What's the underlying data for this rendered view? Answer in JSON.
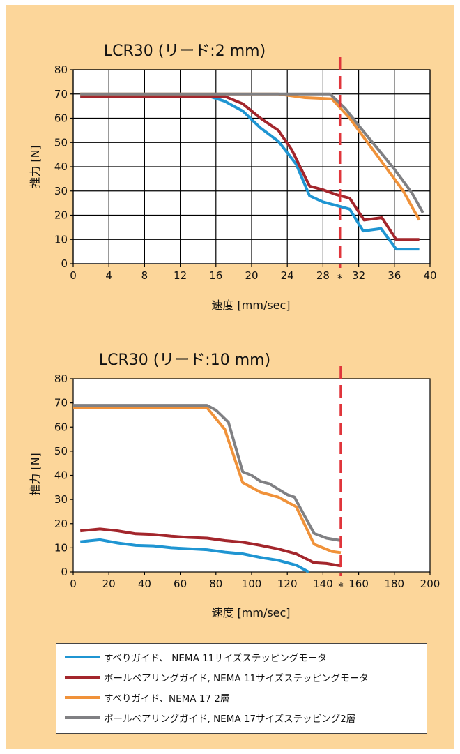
{
  "legend": [
    {
      "label": "すべりガイド、 NEMA 11サイズステッピングモータ",
      "color": "#1f95d2"
    },
    {
      "label": "ボールベアリングガイド, NEMA 11サイズステッピングモータ",
      "color": "#a3262c"
    },
    {
      "label": "すべりガイド、NEMA 17 2層",
      "color": "#f0923a"
    },
    {
      "label": "ボールベアリングガイド, NEMA 17サイズステッピング2層",
      "color": "#808083"
    }
  ],
  "chart_data": [
    {
      "type": "line",
      "title": "LCR30 (リード:2 mm)",
      "xlabel": "速度 [mm/sec]",
      "ylabel": "推力 [N]",
      "xlim": [
        0,
        40
      ],
      "ylim": [
        0,
        80
      ],
      "xticks": [
        "0",
        "4",
        "8",
        "12",
        "16",
        "20",
        "24",
        "28",
        "32",
        "36",
        "40"
      ],
      "yticks": [
        "0",
        "10",
        "20",
        "30",
        "40",
        "50",
        "60",
        "70",
        "80"
      ],
      "grid": true,
      "marker_line": {
        "x": 29.9,
        "color": "#e0353b",
        "label": "*"
      },
      "series": [
        {
          "color": "#1f95d2",
          "points": [
            [
              0.8,
              69
            ],
            [
              15.3,
              69
            ],
            [
              17,
              67
            ],
            [
              19,
              63
            ],
            [
              21,
              56
            ],
            [
              23,
              50.5
            ],
            [
              25,
              41
            ],
            [
              26.5,
              28
            ],
            [
              28,
              25.5
            ],
            [
              30,
              23.5
            ],
            [
              31,
              22.5
            ],
            [
              32.5,
              13.5
            ],
            [
              34.5,
              14.5
            ],
            [
              36.2,
              6
            ],
            [
              38.8,
              6
            ]
          ]
        },
        {
          "color": "#a3262c",
          "points": [
            [
              0.8,
              69
            ],
            [
              17,
              69
            ],
            [
              19,
              66
            ],
            [
              21,
              60
            ],
            [
              23,
              55
            ],
            [
              24.5,
              47
            ],
            [
              26.5,
              32
            ],
            [
              28,
              30.5
            ],
            [
              29.5,
              28.5
            ],
            [
              31,
              27
            ],
            [
              32.6,
              18
            ],
            [
              34.6,
              19
            ],
            [
              36.2,
              10
            ],
            [
              38.8,
              10
            ]
          ]
        },
        {
          "color": "#f0923a",
          "points": [
            [
              0.8,
              70
            ],
            [
              23,
              70
            ],
            [
              26,
              68.5
            ],
            [
              29,
              68
            ],
            [
              31,
              60
            ],
            [
              33,
              50
            ],
            [
              35,
              40
            ],
            [
              37,
              30
            ],
            [
              38.8,
              18
            ]
          ]
        },
        {
          "color": "#808083",
          "points": [
            [
              0.8,
              70
            ],
            [
              28.8,
              70
            ],
            [
              30.5,
              64
            ],
            [
              32,
              57
            ],
            [
              34,
              48
            ],
            [
              36,
              39
            ],
            [
              38,
              29
            ],
            [
              39.2,
              21
            ]
          ]
        }
      ]
    },
    {
      "type": "line",
      "title": "LCR30 (リード:10 mm)",
      "xlabel": "速度 [mm/sec]",
      "ylabel": "推力 [N]",
      "xlim": [
        0,
        200
      ],
      "ylim": [
        0,
        80
      ],
      "xticks": [
        "0",
        "20",
        "40",
        "60",
        "80",
        "100",
        "120",
        "140",
        "160",
        "180",
        "200"
      ],
      "yticks": [
        "0",
        "10",
        "20",
        "30",
        "40",
        "50",
        "60",
        "70",
        "80"
      ],
      "grid": false,
      "marker_line": {
        "x": 150,
        "color": "#e0353b",
        "label": "*"
      },
      "series": [
        {
          "color": "#1f95d2",
          "points": [
            [
              4,
              12.5
            ],
            [
              15,
              13.3
            ],
            [
              25,
              12
            ],
            [
              35,
              11
            ],
            [
              45,
              10.8
            ],
            [
              55,
              10
            ],
            [
              65,
              9.6
            ],
            [
              75,
              9.2
            ],
            [
              85,
              8.2
            ],
            [
              95,
              7.5
            ],
            [
              105,
              6
            ],
            [
              115,
              4.8
            ],
            [
              125,
              2.8
            ],
            [
              132,
              0
            ]
          ]
        },
        {
          "color": "#a3262c",
          "points": [
            [
              4,
              17
            ],
            [
              15,
              17.8
            ],
            [
              25,
              17
            ],
            [
              35,
              15.8
            ],
            [
              45,
              15.5
            ],
            [
              55,
              14.8
            ],
            [
              65,
              14.3
            ],
            [
              75,
              14
            ],
            [
              85,
              13
            ],
            [
              95,
              12.3
            ],
            [
              105,
              11
            ],
            [
              115,
              9.5
            ],
            [
              125,
              7.5
            ],
            [
              135,
              3.8
            ],
            [
              142,
              3.5
            ],
            [
              150,
              2.5
            ]
          ]
        },
        {
          "color": "#f0923a",
          "points": [
            [
              0,
              68
            ],
            [
              75,
              68
            ],
            [
              85,
              59
            ],
            [
              95,
              37
            ],
            [
              105,
              33
            ],
            [
              115,
              31
            ],
            [
              125,
              27
            ],
            [
              135,
              11.5
            ],
            [
              145,
              8.5
            ],
            [
              150,
              8
            ]
          ]
        },
        {
          "color": "#808083",
          "points": [
            [
              0,
              69
            ],
            [
              75,
              69
            ],
            [
              80,
              67
            ],
            [
              87,
              62
            ],
            [
              95,
              41.5
            ],
            [
              100,
              40
            ],
            [
              105,
              37.5
            ],
            [
              110,
              36.5
            ],
            [
              120,
              32
            ],
            [
              124,
              31
            ],
            [
              135,
              16
            ],
            [
              142,
              14
            ],
            [
              150,
              13
            ]
          ]
        }
      ]
    }
  ]
}
